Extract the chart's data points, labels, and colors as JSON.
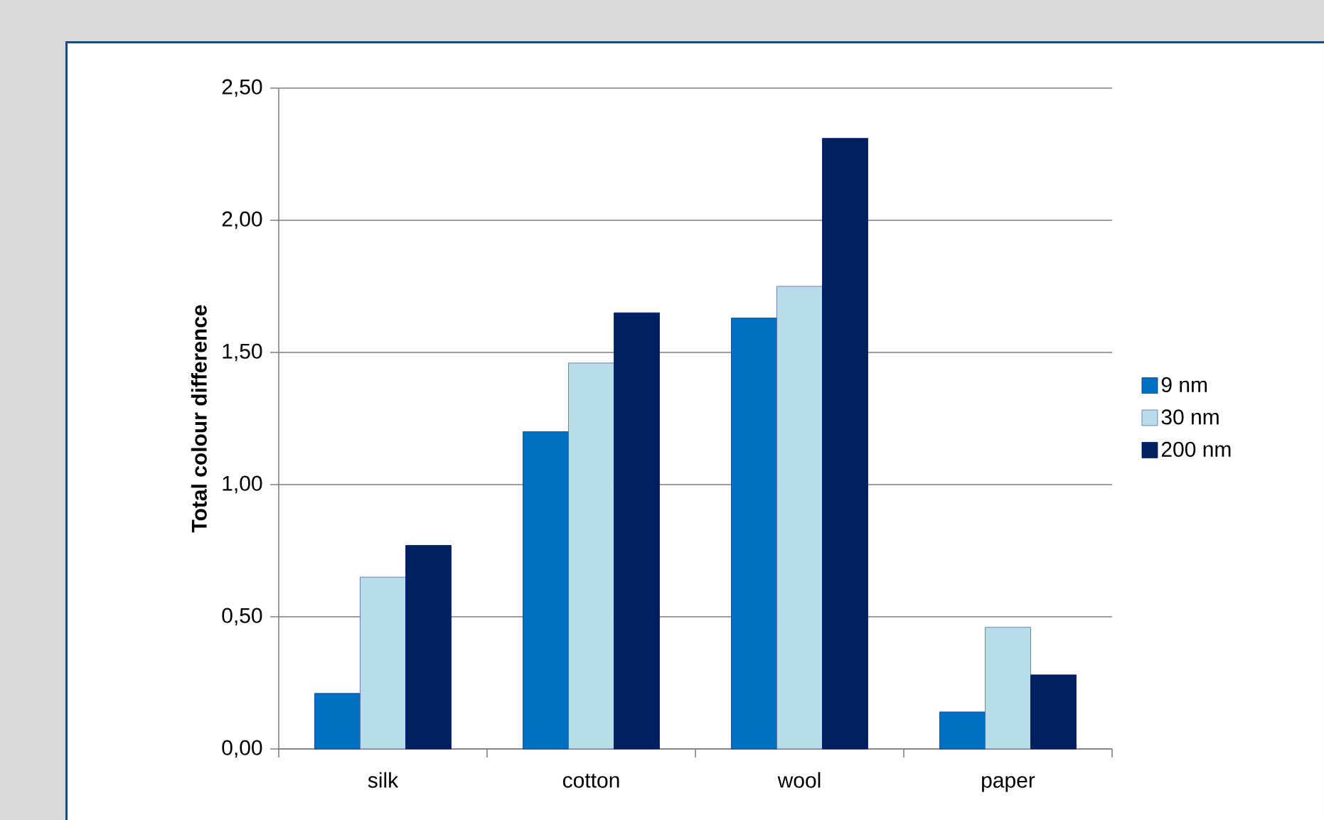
{
  "chart_data": {
    "type": "bar",
    "ylabel": "Total colour difference",
    "categories": [
      "silk",
      "cotton",
      "wool",
      "paper"
    ],
    "series": [
      {
        "name": "9 nm",
        "color": "#0070c0",
        "values": [
          0.21,
          1.2,
          1.63,
          0.14
        ]
      },
      {
        "name": "30 nm",
        "color": "#b7dee8",
        "values": [
          0.65,
          1.46,
          1.75,
          0.46
        ]
      },
      {
        "name": "200 nm",
        "color": "#002060",
        "values": [
          0.77,
          1.65,
          2.31,
          0.28
        ]
      }
    ],
    "ylim": [
      0,
      2.5
    ],
    "yticks": [
      {
        "value": 0,
        "label": "0,00"
      },
      {
        "value": 0.5,
        "label": "0,50"
      },
      {
        "value": 1,
        "label": "1,00"
      },
      {
        "value": 1.5,
        "label": "1,50"
      },
      {
        "value": 2,
        "label": "2,00"
      },
      {
        "value": 2.5,
        "label": "2,50"
      }
    ],
    "grid": "y",
    "legend": "right"
  }
}
